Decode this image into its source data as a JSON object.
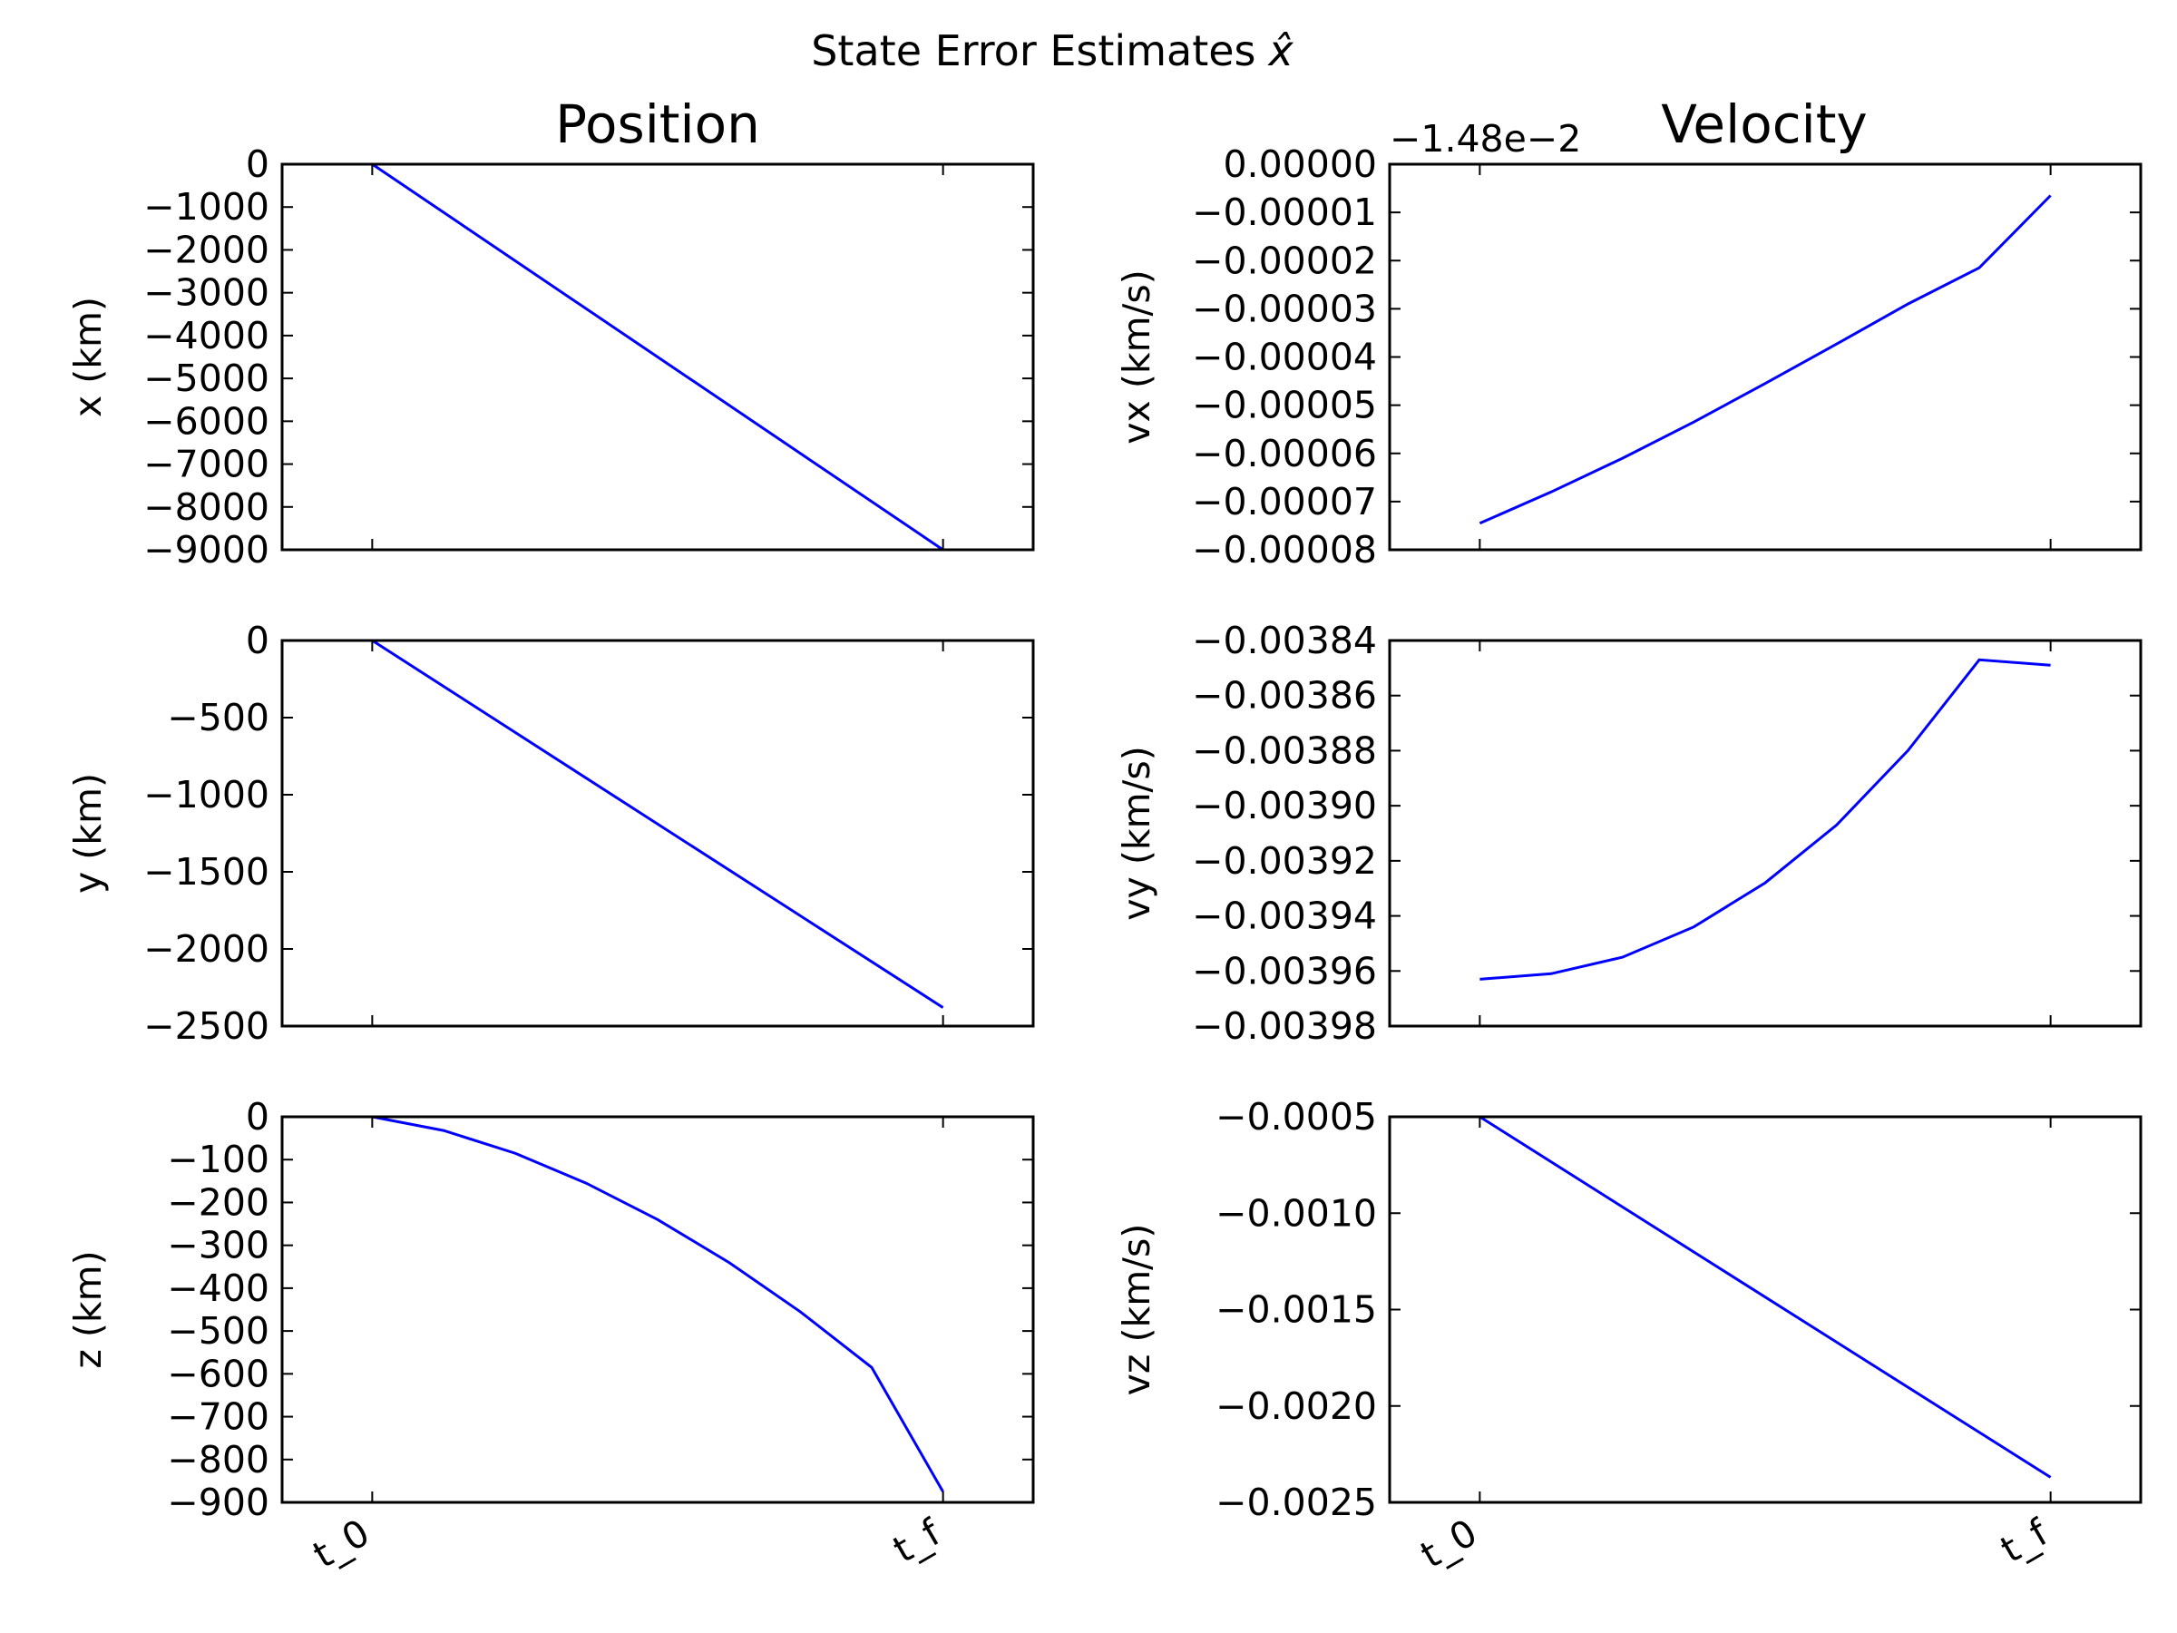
{
  "figure": {
    "suptitle": "State Error Estimates",
    "suptitle_symbol": "x̂",
    "column_titles": [
      "Position",
      "Velocity"
    ],
    "line_color": "#0000ff",
    "x_tick_labels": [
      "t_0",
      "t_f"
    ]
  },
  "chart_data": [
    {
      "type": "line",
      "ylabel": "x (km)",
      "ylim": [
        -9000,
        0
      ],
      "yticks": [
        0,
        -1000,
        -2000,
        -3000,
        -4000,
        -5000,
        -6000,
        -7000,
        -8000,
        -9000
      ],
      "ytick_labels": [
        "0",
        "−1000",
        "−2000",
        "−3000",
        "−4000",
        "−5000",
        "−6000",
        "−7000",
        "−8000",
        "−9000"
      ],
      "x": [
        0,
        1
      ],
      "y": [
        0,
        -9000
      ]
    },
    {
      "type": "line",
      "ylabel": "vx (km/s)",
      "offset_text": "−1.48e−2",
      "ylim": [
        -8e-05,
        0
      ],
      "yticks": [
        0,
        -1e-05,
        -2e-05,
        -3e-05,
        -4e-05,
        -5e-05,
        -6e-05,
        -7e-05,
        -8e-05
      ],
      "ytick_labels": [
        "0.00000",
        "−0.00001",
        "−0.00002",
        "−0.00003",
        "−0.00004",
        "−0.00005",
        "−0.00006",
        "−0.00007",
        "−0.00008"
      ],
      "x": [
        0,
        0.125,
        0.25,
        0.375,
        0.5,
        0.625,
        0.75,
        0.875,
        1
      ],
      "y": [
        -7.45e-05,
        -6.8e-05,
        -6.1e-05,
        -5.35e-05,
        -4.55e-05,
        -3.73e-05,
        -2.9e-05,
        -2.15e-05,
        -6.5e-06
      ]
    },
    {
      "type": "line",
      "ylabel": "y (km)",
      "ylim": [
        -2500,
        0
      ],
      "yticks": [
        0,
        -500,
        -1000,
        -1500,
        -2000,
        -2500
      ],
      "ytick_labels": [
        "0",
        "−500",
        "−1000",
        "−1500",
        "−2000",
        "−2500"
      ],
      "x": [
        0,
        1
      ],
      "y": [
        0,
        -2380
      ]
    },
    {
      "type": "line",
      "ylabel": "vy (km/s)",
      "ylim": [
        -0.00398,
        -0.00384
      ],
      "yticks": [
        -0.00384,
        -0.00386,
        -0.00388,
        -0.0039,
        -0.00392,
        -0.00394,
        -0.00396,
        -0.00398
      ],
      "ytick_labels": [
        "−0.00384",
        "−0.00386",
        "−0.00388",
        "−0.00390",
        "−0.00392",
        "−0.00394",
        "−0.00396",
        "−0.00398"
      ],
      "x": [
        0,
        0.125,
        0.25,
        0.375,
        0.5,
        0.625,
        0.75,
        0.875,
        1
      ],
      "y": [
        -0.003963,
        -0.003961,
        -0.003955,
        -0.003944,
        -0.003928,
        -0.003907,
        -0.00388,
        -0.003847,
        -0.003849
      ]
    },
    {
      "type": "line",
      "ylabel": "z (km)",
      "ylim": [
        -900,
        0
      ],
      "yticks": [
        0,
        -100,
        -200,
        -300,
        -400,
        -500,
        -600,
        -700,
        -800,
        -900
      ],
      "ytick_labels": [
        "0",
        "−100",
        "−200",
        "−300",
        "−400",
        "−500",
        "−600",
        "−700",
        "−800",
        "−900"
      ],
      "x": [
        0,
        0.125,
        0.25,
        0.375,
        0.5,
        0.625,
        0.75,
        0.875,
        1
      ],
      "y": [
        0,
        -32,
        -85,
        -155,
        -240,
        -340,
        -455,
        -585,
        -875
      ]
    },
    {
      "type": "line",
      "ylabel": "vz (km/s)",
      "ylim": [
        -0.0025,
        -0.0005
      ],
      "yticks": [
        -0.0005,
        -0.001,
        -0.0015,
        -0.002,
        -0.0025
      ],
      "ytick_labels": [
        "−0.0005",
        "−0.0010",
        "−0.0015",
        "−0.0020",
        "−0.0025"
      ],
      "x": [
        0,
        1
      ],
      "y": [
        -0.0005,
        -0.00237
      ]
    }
  ]
}
